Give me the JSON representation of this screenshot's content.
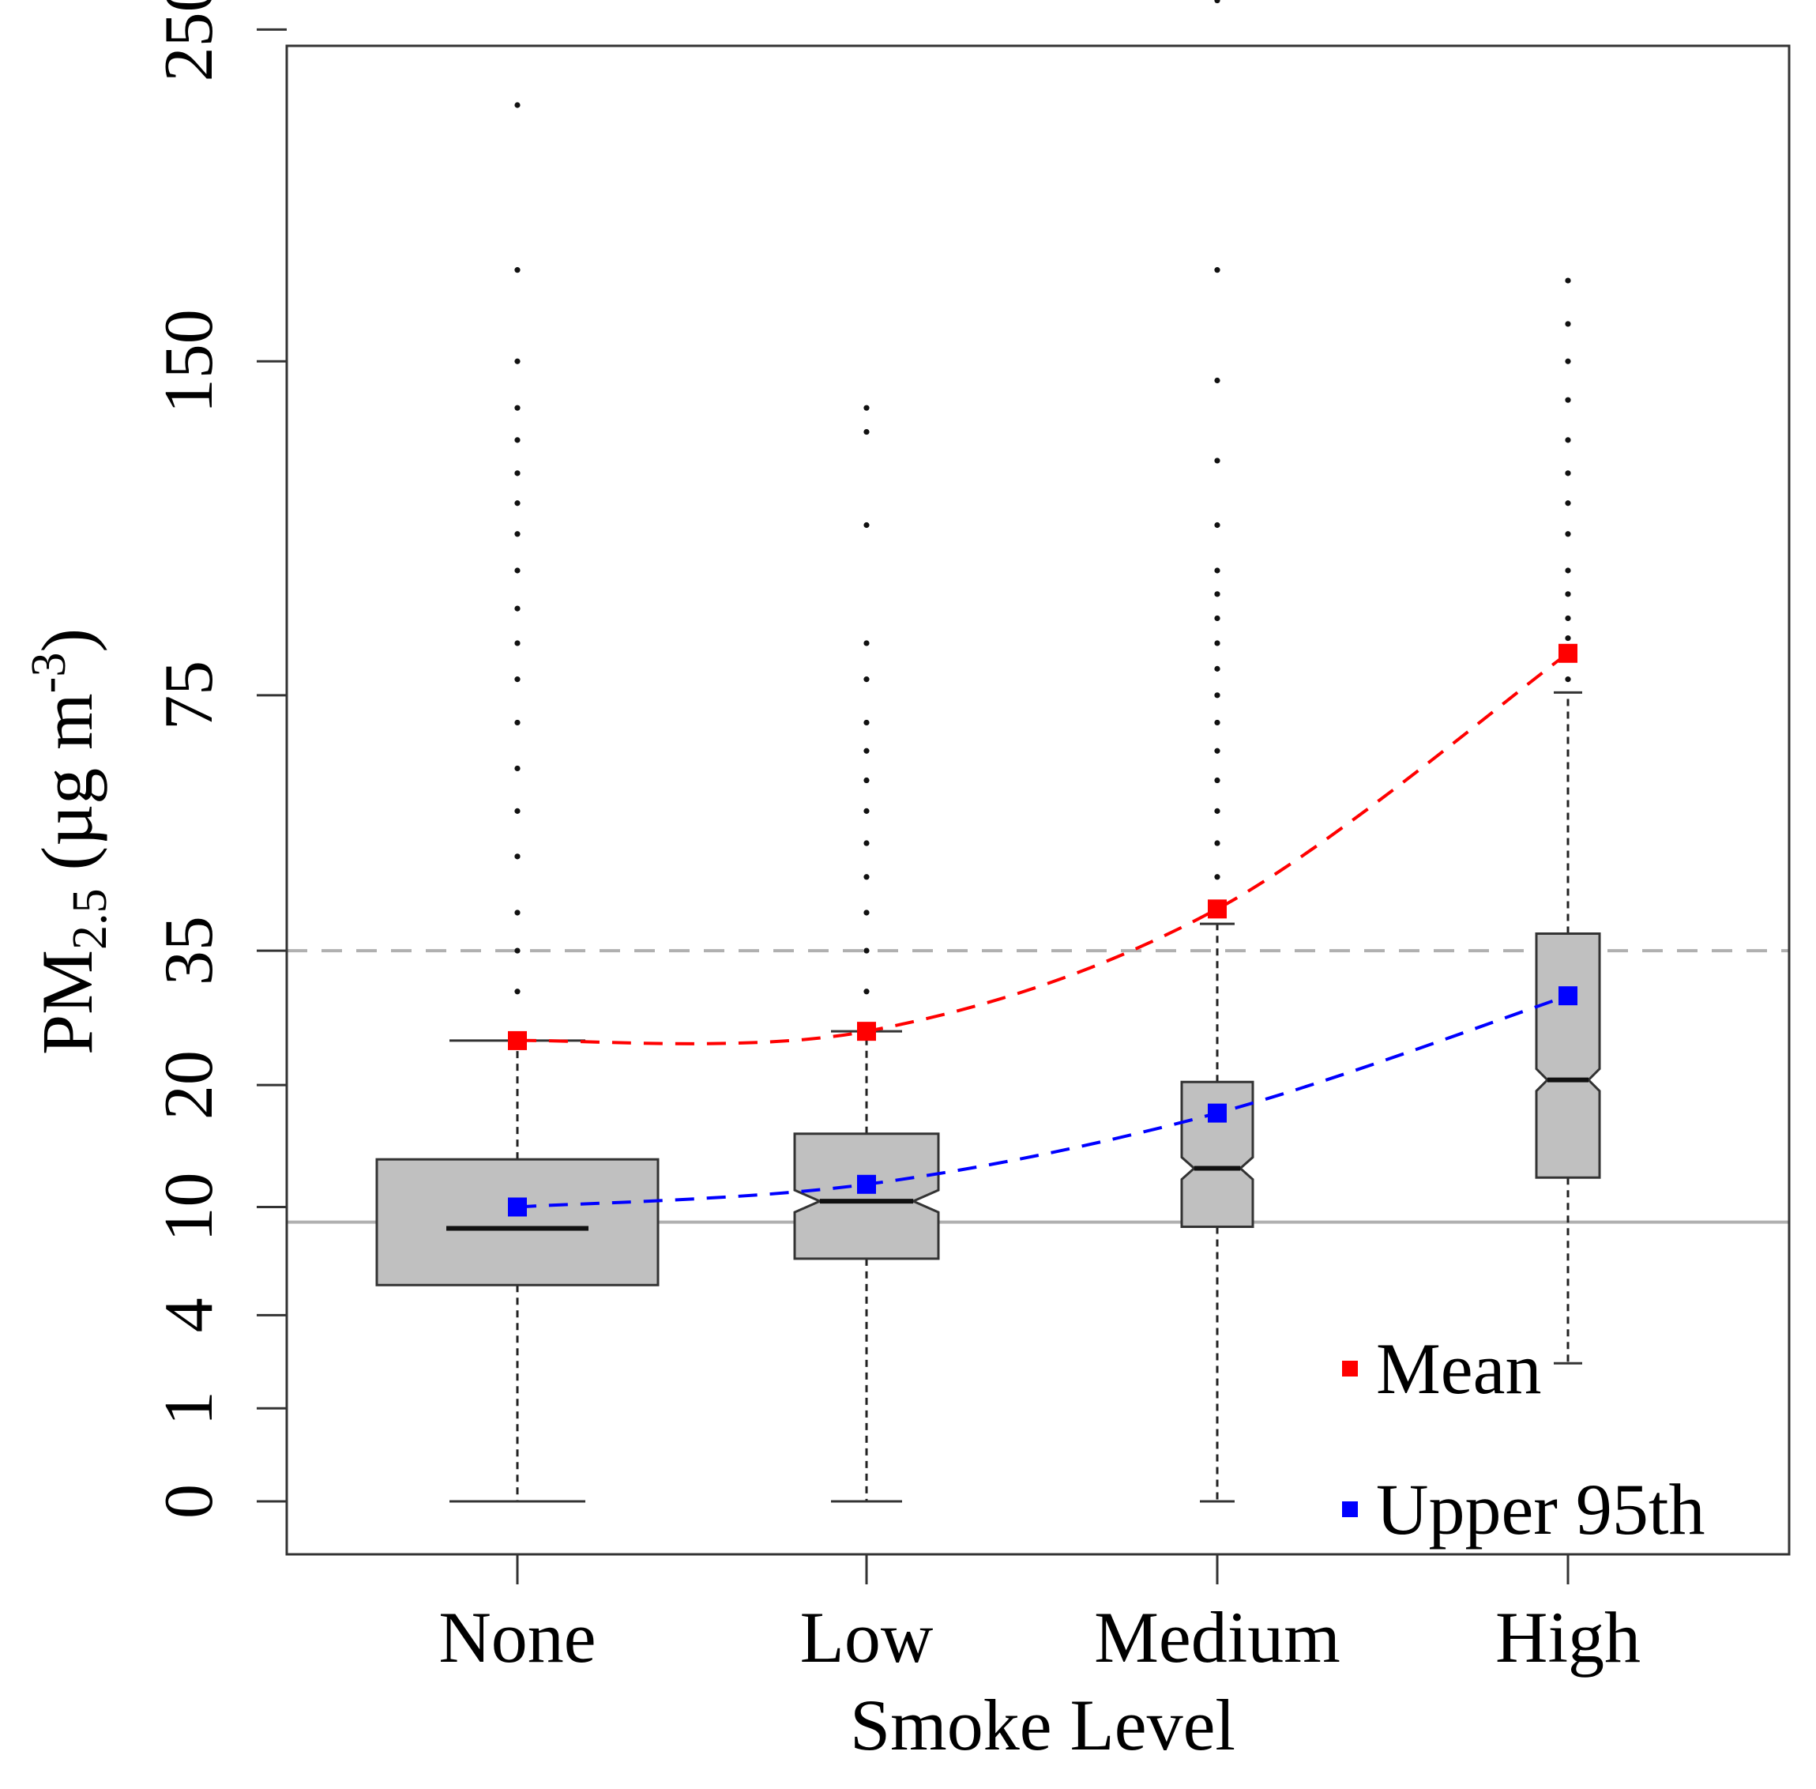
{
  "chart_data": {
    "type": "box",
    "title": "",
    "xlabel": "Smoke Level",
    "ylabel": {
      "main": "PM",
      "subscript": "2.5",
      "units_open": " (µg m",
      "units_power": "-3",
      "units_close": ")"
    },
    "y_scale": "square-root",
    "y_ticks": [
      0,
      1,
      4,
      10,
      20,
      35,
      75,
      150,
      250
    ],
    "y_tick_labels": [
      "0",
      "1",
      "4",
      "10",
      "20",
      "35",
      "75",
      "150",
      "250"
    ],
    "ylim": [
      0,
      290
    ],
    "categories": [
      "None",
      "Low",
      "Medium",
      "High"
    ],
    "boxes": [
      {
        "category": "None",
        "whisker_low": 0,
        "q1": 5.4,
        "median": 8.6,
        "q3": 13.5,
        "whisker_high": 24.5,
        "notched": false,
        "outliers": [
          25,
          30,
          35,
          40,
          48,
          55,
          62,
          70,
          78,
          85,
          92,
          100,
          108,
          115,
          122,
          130,
          138,
          150,
          175,
          225
        ]
      },
      {
        "category": "Low",
        "whisker_low": 0,
        "q1": 6.8,
        "median": 10.4,
        "q3": 15.6,
        "whisker_high": 25.5,
        "notched": true,
        "outliers": [
          26,
          30,
          35,
          40,
          45,
          50,
          55,
          60,
          65,
          70,
          78,
          85,
          110,
          132,
          138
        ]
      },
      {
        "category": "Medium",
        "whisker_low": 0,
        "q1": 8.7,
        "median": 12.8,
        "q3": 20.3,
        "whisker_high": 38.5,
        "notched": true,
        "outliers": [
          40,
          45,
          50,
          55,
          60,
          65,
          70,
          75,
          80,
          85,
          90,
          95,
          100,
          110,
          125,
          145,
          175,
          260
        ]
      },
      {
        "category": "High",
        "whisker_low": 2.2,
        "q1": 12.1,
        "median": 20.5,
        "q3": 37.2,
        "whisker_high": 75.5,
        "notched": true,
        "outliers": [
          78,
          82,
          86,
          90,
          95,
          100,
          108,
          115,
          122,
          130,
          140,
          150,
          160,
          172
        ]
      }
    ],
    "series": [
      {
        "name": "Mean",
        "color": "#ff0000",
        "values": [
          24.5,
          25.5,
          40.5,
          83
        ]
      },
      {
        "name": "Upper 95th",
        "color": "#0000ff",
        "values": [
          10.0,
          11.6,
          17.4,
          29.5
        ]
      }
    ],
    "reference_lines": [
      {
        "value": 35,
        "color": "#b0b0b0",
        "style": "dashed"
      },
      {
        "value": 9,
        "color": "#b0b0b0",
        "style": "solid"
      }
    ],
    "grid": false,
    "legend_position": "bottom-right",
    "colors": {
      "box_fill": "#c0c0c0",
      "box_stroke": "#333333",
      "axis": "#333333"
    }
  }
}
